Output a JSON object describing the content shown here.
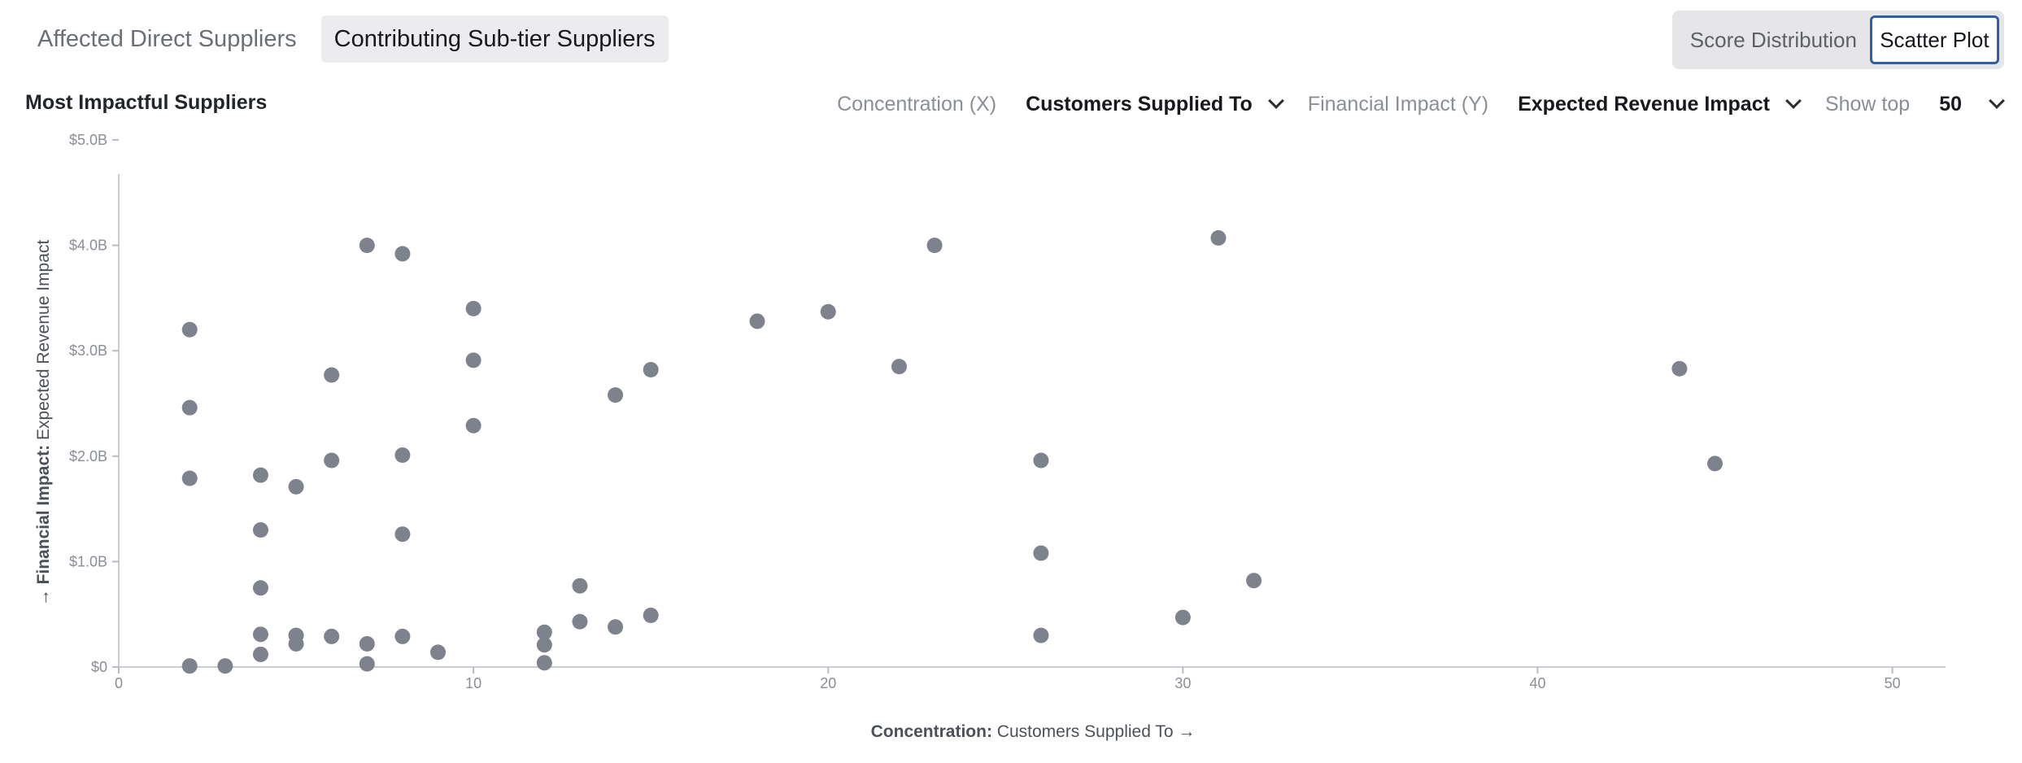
{
  "tabs": {
    "direct": "Affected Direct Suppliers",
    "subtier": "Contributing Sub-tier Suppliers"
  },
  "view_toggle": {
    "score_distribution": "Score Distribution",
    "scatter_plot": "Scatter Plot"
  },
  "section_title": "Most Impactful Suppliers",
  "controls": {
    "x_label": "Concentration (X)",
    "x_value": "Customers Supplied To",
    "y_label": "Financial Impact (Y)",
    "y_value": "Expected Revenue Impact",
    "top_label": "Show top",
    "top_value": "50"
  },
  "chart_data": {
    "type": "scatter",
    "xlabel_bold": "Concentration:",
    "xlabel": "Customers Supplied To →",
    "ylabel_bold": "→ Financial Impact:",
    "ylabel": "Expected Revenue Impact",
    "xlim": [
      0,
      51.5
    ],
    "ylim": [
      0,
      5.0
    ],
    "x_ticks": [
      0,
      10,
      20,
      30,
      40,
      50
    ],
    "x_tick_labels": [
      "0",
      "10",
      "20",
      "30",
      "40",
      "50"
    ],
    "y_ticks": [
      0,
      1,
      2,
      3,
      4,
      5
    ],
    "y_tick_labels": [
      "$0",
      "$1.0B",
      "$2.0B",
      "$3.0B",
      "$4.0B",
      "$5.0B"
    ],
    "y_unit": "$B",
    "grid": false,
    "point_color": "#7e828c",
    "points": [
      {
        "x": 2,
        "y": 3.2
      },
      {
        "x": 2,
        "y": 2.46
      },
      {
        "x": 2,
        "y": 1.79
      },
      {
        "x": 2,
        "y": 0.01
      },
      {
        "x": 3,
        "y": 0.01
      },
      {
        "x": 4,
        "y": 1.82
      },
      {
        "x": 4,
        "y": 1.3
      },
      {
        "x": 4,
        "y": 0.75
      },
      {
        "x": 4,
        "y": 0.31
      },
      {
        "x": 4,
        "y": 0.12
      },
      {
        "x": 5,
        "y": 1.71
      },
      {
        "x": 5,
        "y": 0.3
      },
      {
        "x": 5,
        "y": 0.22
      },
      {
        "x": 6,
        "y": 2.77
      },
      {
        "x": 6,
        "y": 1.96
      },
      {
        "x": 6,
        "y": 0.29
      },
      {
        "x": 7,
        "y": 4.0
      },
      {
        "x": 7,
        "y": 0.22
      },
      {
        "x": 7,
        "y": 0.03
      },
      {
        "x": 8,
        "y": 3.92
      },
      {
        "x": 8,
        "y": 2.01
      },
      {
        "x": 8,
        "y": 1.26
      },
      {
        "x": 8,
        "y": 0.29
      },
      {
        "x": 9,
        "y": 0.14
      },
      {
        "x": 10,
        "y": 3.4
      },
      {
        "x": 10,
        "y": 2.91
      },
      {
        "x": 10,
        "y": 2.29
      },
      {
        "x": 12,
        "y": 0.33
      },
      {
        "x": 12,
        "y": 0.21
      },
      {
        "x": 12,
        "y": 0.04
      },
      {
        "x": 13,
        "y": 0.77
      },
      {
        "x": 13,
        "y": 0.43
      },
      {
        "x": 14,
        "y": 2.58
      },
      {
        "x": 14,
        "y": 0.38
      },
      {
        "x": 15,
        "y": 2.82
      },
      {
        "x": 15,
        "y": 0.49
      },
      {
        "x": 18,
        "y": 3.28
      },
      {
        "x": 20,
        "y": 3.37
      },
      {
        "x": 22,
        "y": 2.85
      },
      {
        "x": 23,
        "y": 4.0
      },
      {
        "x": 26,
        "y": 1.96
      },
      {
        "x": 26,
        "y": 1.08
      },
      {
        "x": 26,
        "y": 0.3
      },
      {
        "x": 30,
        "y": 0.47
      },
      {
        "x": 31,
        "y": 4.07
      },
      {
        "x": 32,
        "y": 0.82
      },
      {
        "x": 44,
        "y": 2.83
      },
      {
        "x": 45,
        "y": 1.93
      }
    ]
  }
}
